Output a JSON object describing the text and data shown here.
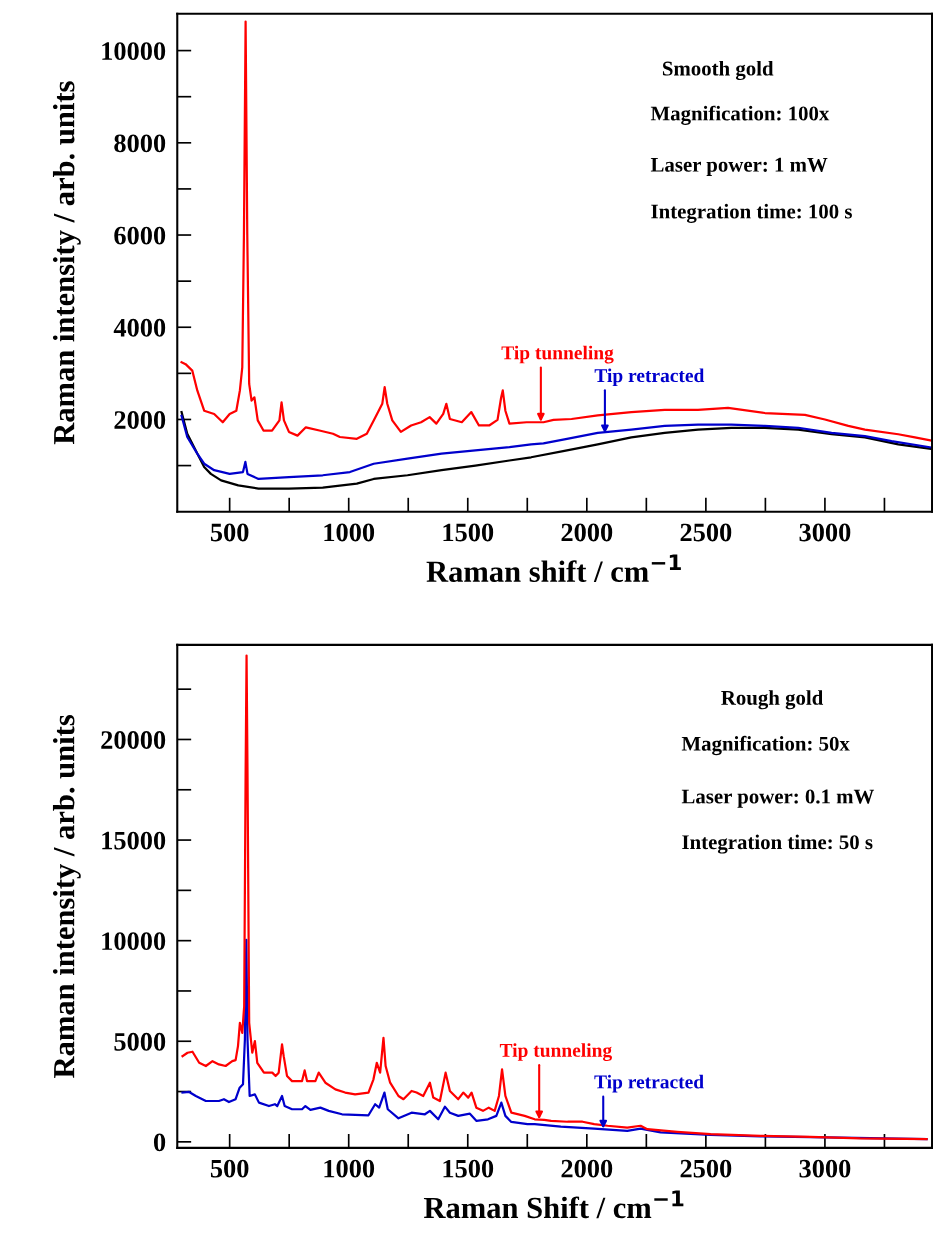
{
  "chart_data": [
    {
      "type": "line",
      "xlabel": "Raman shift / cm$^{−1}$",
      "ylabel": "Raman intensity / arb. units",
      "xlim": [
        280,
        3450
      ],
      "ylim": [
        0,
        10800
      ],
      "xticks": [
        500,
        {
          "value": 750,
          "label": null
        },
        1000,
        {
          "value": 1250,
          "label": null
        },
        1500,
        {
          "value": 1750,
          "label": null
        },
        2000,
        {
          "value": 2250,
          "label": null
        },
        2500,
        {
          "value": 2750,
          "label": null
        },
        3000,
        {
          "value": 3250,
          "label": null
        }
      ],
      "yticks": [
        {
          "value": 1000,
          "label": null
        },
        2000,
        {
          "value": 3000,
          "label": null
        },
        4000,
        {
          "value": 5000,
          "label": null
        },
        6000,
        {
          "value": 7000,
          "label": null
        },
        8000,
        {
          "value": 9000,
          "label": null
        },
        10000
      ],
      "grid": false,
      "marker": "none",
      "line_style": "solid",
      "annotations": [
        "Smooth gold",
        "Magnification: 100x",
        "Laser power: 1 mW",
        "Integration time: 100 s",
        {
          "text": "Tip tunneling",
          "x": 1807,
          "y": 1950
        },
        {
          "text": "Tip retracted",
          "x": 2076,
          "y": 1700
        }
      ],
      "series": [
        {
          "color": "#ff0000",
          "x": [
            298,
            315,
            343,
            364,
            393,
            435,
            471,
            500,
            528,
            543,
            553,
            560,
            567,
            574,
            582,
            592,
            604,
            618,
            642,
            678,
            709,
            718,
            728,
            749,
            785,
            820,
            877,
            934,
            963,
            1034,
            1076,
            1105,
            1126,
            1141,
            1151,
            1162,
            1183,
            1219,
            1262,
            1304,
            1340,
            1368,
            1397,
            1410,
            1425,
            1475,
            1515,
            1547,
            1590,
            1625,
            1640,
            1647,
            1658,
            1675,
            1747,
            1818,
            1860,
            1936,
            2046,
            2187,
            2327,
            2467,
            2593,
            2748,
            2916,
            3000,
            3098,
            3168,
            3308,
            3378,
            3449
          ],
          "values": [
            3240,
            3200,
            3060,
            2630,
            2190,
            2120,
            1940,
            2120,
            2190,
            2630,
            3130,
            6020,
            10630,
            6020,
            2770,
            2410,
            2480,
            1980,
            1760,
            1760,
            1980,
            2370,
            1980,
            1730,
            1650,
            1830,
            1760,
            1690,
            1620,
            1580,
            1690,
            1980,
            2190,
            2340,
            2700,
            2340,
            1980,
            1730,
            1870,
            1940,
            2050,
            1910,
            2120,
            2340,
            2010,
            1940,
            2160,
            1870,
            1870,
            1990,
            2470,
            2630,
            2190,
            1910,
            1940,
            1940,
            1990,
            2010,
            2090,
            2160,
            2210,
            2210,
            2250,
            2140,
            2100,
            2000,
            1860,
            1780,
            1680,
            1610,
            1540
          ]
        },
        {
          "color": "#0000cc",
          "x": [
            298,
            322,
            364,
            393,
            435,
            500,
            556,
            566,
            575,
            621,
            749,
            891,
            1005,
            1105,
            1247,
            1390,
            1532,
            1675,
            1766,
            1818,
            1906,
            2046,
            2187,
            2327,
            2467,
            2607,
            2748,
            2888,
            3028,
            3168,
            3280,
            3449
          ],
          "values": [
            2080,
            1620,
            1260,
            1040,
            900,
            820,
            860,
            1080,
            820,
            710,
            750,
            790,
            860,
            1040,
            1150,
            1260,
            1330,
            1400,
            1460,
            1480,
            1570,
            1710,
            1780,
            1860,
            1890,
            1890,
            1860,
            1820,
            1710,
            1640,
            1530,
            1390
          ]
        },
        {
          "color": "#000000",
          "x": [
            298,
            322,
            364,
            393,
            421,
            464,
            536,
            621,
            749,
            891,
            1034,
            1105,
            1247,
            1390,
            1532,
            1675,
            1766,
            1906,
            2046,
            2187,
            2327,
            2467,
            2607,
            2748,
            2888,
            3028,
            3168,
            3308,
            3449
          ],
          "values": [
            2160,
            1690,
            1260,
            970,
            820,
            680,
            570,
            500,
            500,
            520,
            610,
            710,
            790,
            900,
            1000,
            1110,
            1180,
            1320,
            1460,
            1610,
            1710,
            1780,
            1820,
            1820,
            1780,
            1680,
            1610,
            1460,
            1360
          ]
        }
      ]
    },
    {
      "type": "line",
      "xlabel": "Raman Shift / cm$^{−1}$",
      "ylabel": "Raman intensity / arb. units",
      "xlim": [
        280,
        3450
      ],
      "ylim": [
        -300,
        24700
      ],
      "xticks": [
        500,
        {
          "value": 750,
          "label": null
        },
        1000,
        {
          "value": 1250,
          "label": null
        },
        1500,
        {
          "value": 1750,
          "label": null
        },
        2000,
        {
          "value": 2250,
          "label": null
        },
        2500,
        {
          "value": 2750,
          "label": null
        },
        3000,
        {
          "value": 3250,
          "label": null
        }
      ],
      "yticks": [
        0,
        {
          "value": 2500,
          "label": null
        },
        5000,
        {
          "value": 7500,
          "label": null
        },
        10000,
        {
          "value": 12500,
          "label": null
        },
        15000,
        {
          "value": 17500,
          "label": null
        },
        20000,
        {
          "value": 22500,
          "label": null
        }
      ],
      "grid": false,
      "marker": "none",
      "line_style": "solid",
      "annotations": [
        "Rough gold",
        "Magnification: 50x",
        "Laser power: 0.1 mW",
        "Integration time: 50 s",
        {
          "text": "Tip tunneling",
          "x": 1800,
          "y": 1120
        },
        {
          "text": "Tip retracted",
          "x": 2069,
          "y": 660
        }
      ],
      "series": [
        {
          "color": "#ff0000",
          "x": [
            302,
            323,
            344,
            372,
            400,
            428,
            455,
            483,
            511,
            525,
            535,
            543,
            553,
            561,
            567,
            571,
            575,
            582,
            595,
            606,
            616,
            644,
            679,
            693,
            706,
            720,
            727,
            741,
            762,
            804,
            815,
            825,
            860,
            874,
            902,
            944,
            985,
            1027,
            1083,
            1104,
            1118,
            1132,
            1146,
            1155,
            1174,
            1209,
            1230,
            1264,
            1285,
            1313,
            1341,
            1355,
            1383,
            1407,
            1425,
            1460,
            1481,
            1502,
            1516,
            1536,
            1564,
            1588,
            1613,
            1631,
            1644,
            1658,
            1683,
            1739,
            1781,
            1821,
            1850,
            1919,
            1982,
            2031,
            2087,
            2170,
            2226,
            2254,
            2380,
            2520,
            2729,
            2939,
            3148,
            3427
          ],
          "values": [
            4260,
            4430,
            4480,
            3930,
            3770,
            4010,
            3850,
            3770,
            4010,
            4060,
            4760,
            5910,
            5420,
            6740,
            18300,
            24170,
            18300,
            5910,
            4430,
            5010,
            3930,
            3440,
            3440,
            3270,
            3440,
            4840,
            4260,
            3270,
            3020,
            3020,
            3550,
            3020,
            3020,
            3440,
            2940,
            2610,
            2450,
            2360,
            2450,
            3110,
            3930,
            3440,
            5170,
            3770,
            2940,
            2280,
            2120,
            2530,
            2450,
            2280,
            2940,
            2200,
            2030,
            3440,
            2530,
            2120,
            2450,
            2200,
            2450,
            1700,
            1540,
            1700,
            1540,
            2280,
            3600,
            2280,
            1450,
            1290,
            1120,
            1090,
            1040,
            1000,
            1000,
            880,
            800,
            710,
            800,
            630,
            500,
            380,
            300,
            250,
            170,
            140
          ]
        },
        {
          "color": "#0000cc",
          "x": [
            302,
            330,
            358,
            400,
            455,
            476,
            497,
            525,
            542,
            556,
            564,
            570,
            575,
            584,
            606,
            623,
            665,
            690,
            700,
            720,
            731,
            762,
            804,
            818,
            839,
            881,
            916,
            972,
            1083,
            1111,
            1128,
            1150,
            1164,
            1209,
            1264,
            1320,
            1341,
            1376,
            1404,
            1425,
            1460,
            1509,
            1537,
            1585,
            1620,
            1641,
            1658,
            1683,
            1751,
            1781,
            1891,
            2031,
            2170,
            2226,
            2310,
            2520,
            2729,
            3008,
            3427
          ],
          "values": [
            2450,
            2480,
            2280,
            2030,
            2030,
            2120,
            1980,
            2120,
            2690,
            2860,
            5090,
            10040,
            5090,
            2280,
            2360,
            1950,
            1780,
            1870,
            1780,
            2280,
            1780,
            1620,
            1620,
            1780,
            1590,
            1700,
            1540,
            1370,
            1320,
            1870,
            1700,
            2450,
            1620,
            1170,
            1450,
            1370,
            1540,
            1120,
            1750,
            1450,
            1290,
            1400,
            1040,
            1120,
            1290,
            1950,
            1290,
            990,
            880,
            880,
            760,
            660,
            550,
            660,
            470,
            350,
            270,
            220,
            140
          ]
        }
      ]
    }
  ]
}
